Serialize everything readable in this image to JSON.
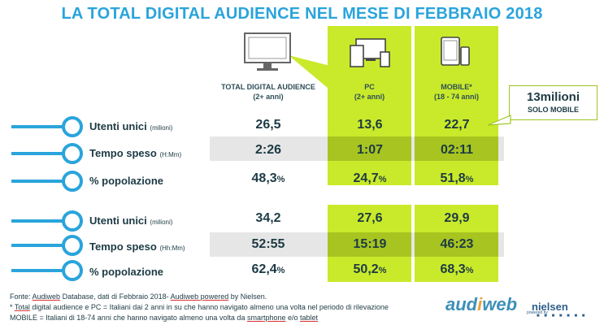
{
  "title": "LA TOTAL DIGITAL AUDIENCE NEL MESE DI FEBBRAIO 2018",
  "columns": [
    {
      "label": "TOTAL DIGITAL AUDIENCE",
      "sub": "(2+ anni)",
      "icon": "monitor-icon"
    },
    {
      "label": "PC",
      "sub": "(2+ anni)",
      "icon": "devices-icon"
    },
    {
      "label": "MOBILE*",
      "sub": "(18 - 74 anni)",
      "icon": "tablet-phone-icon"
    }
  ],
  "callout": {
    "big": "13milioni",
    "small": "SOLO MOBILE"
  },
  "section1": [
    {
      "label": "Utenti unici",
      "sub": "(milioni)",
      "values": [
        "26,5",
        "13,6",
        "22,7"
      ]
    },
    {
      "label": "Tempo speso",
      "sub": "(H:Mm)",
      "values": [
        "2:26",
        "1:07",
        "02:11"
      ]
    },
    {
      "label": "% popolazione",
      "sub": "",
      "values": [
        "48,3",
        "24,7",
        "51,8"
      ],
      "pct": "%"
    }
  ],
  "section2": [
    {
      "label": "Utenti unici",
      "sub": "(milioni)",
      "values": [
        "34,2",
        "27,6",
        "29,9"
      ]
    },
    {
      "label": "Tempo speso",
      "sub": "(Hh:Mm)",
      "values": [
        "52:55",
        "15:19",
        "46:23"
      ]
    },
    {
      "label": "% popolazione",
      "sub": "",
      "values": [
        "62,4",
        "50,2",
        "68,3"
      ],
      "pct": "%"
    }
  ],
  "footnotes": {
    "line1_a": "Fonte: ",
    "line1_b": "Audiweb",
    "line1_c": " Database, dati di Febbraio 2018- ",
    "line1_d": "Audiweb powered",
    "line1_e": " by Nielsen.",
    "line2_a": "* ",
    "line2_b": "Total",
    "line2_c": " digital audience e PC = Italiani dai 2 anni in su che hanno navigato almeno una volta nel periodo di rilevazione",
    "line3_a": "MOBILE = Italiani di 18-74 anni che hanno navigato almeno una volta da ",
    "line3_b": "smartphone",
    "line3_c": " e/o ",
    "line3_d": "tablet"
  },
  "logo": {
    "audi": "aud",
    "i": "i",
    "web": "web",
    "powered": "powered by",
    "nielsen": "nielsen",
    "dots": "■ ■ ■ ■ ■ ■ ■"
  },
  "colors": {
    "green": "#c9ea2a",
    "dark_green": "#a7c421",
    "blue": "#2aa4dc",
    "gray_band": "#e6e6e6"
  }
}
